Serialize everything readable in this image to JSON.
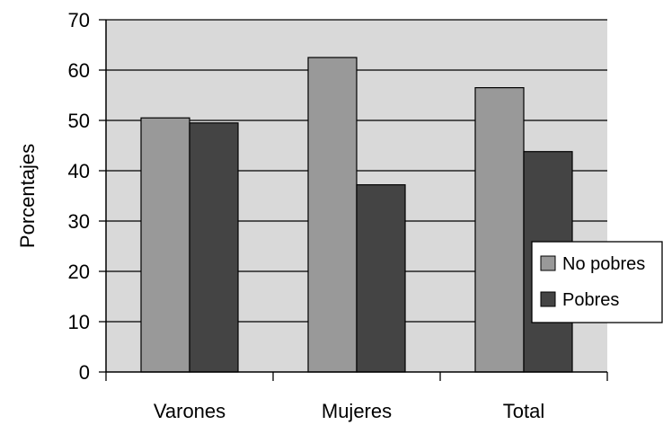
{
  "chart_data": {
    "type": "bar",
    "title": "",
    "xlabel": "",
    "ylabel": "Porcentajes",
    "ylim": [
      0,
      70
    ],
    "yticks": [
      0,
      10,
      20,
      30,
      40,
      50,
      60,
      70
    ],
    "categories": [
      "Varones",
      "Mujeres",
      "Total"
    ],
    "series": [
      {
        "name": "No pobres",
        "values": [
          50.5,
          62.5,
          56.5
        ],
        "color": "#999999"
      },
      {
        "name": "Pobres",
        "values": [
          49.5,
          37.2,
          43.8
        ],
        "color": "#444444"
      }
    ],
    "grid": true,
    "plot_background": "#d9d9d9",
    "legend": {
      "placement": "right",
      "entries": [
        "No pobres",
        "Pobres"
      ]
    }
  }
}
